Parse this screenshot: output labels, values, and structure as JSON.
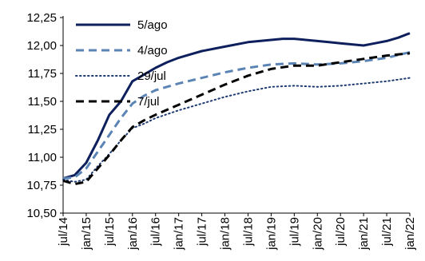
{
  "chart_data": {
    "type": "line",
    "title": "",
    "xlabel": "",
    "ylabel": "",
    "ylim": [
      10.5,
      12.25
    ],
    "yticks": [
      10.5,
      10.75,
      11.0,
      11.25,
      11.5,
      11.75,
      12.0,
      12.25
    ],
    "ytick_labels": [
      "10,50",
      "10,75",
      "11,00",
      "11,25",
      "11,50",
      "11,75",
      "12,00",
      "12,25"
    ],
    "xtick_labels": [
      "jul/14",
      "jan/15",
      "jul/15",
      "jan/16",
      "jul/16",
      "jan/17",
      "jul/17",
      "jan/18",
      "jul/18",
      "jan/19",
      "jul/19",
      "jan/20",
      "jul/20",
      "jan/21",
      "jul/21",
      "jan/22"
    ],
    "xtick_index": [
      0,
      6,
      12,
      18,
      24,
      30,
      36,
      42,
      48,
      54,
      60,
      66,
      72,
      78,
      84,
      90
    ],
    "xlim_index": [
      0,
      90
    ],
    "legend_position": "top-left",
    "grid": false,
    "series": [
      {
        "name": "5/ago",
        "color": "#0d1f5c",
        "dash": "solid",
        "points": [
          [
            0,
            10.81
          ],
          [
            3,
            10.84
          ],
          [
            6,
            10.95
          ],
          [
            9,
            11.15
          ],
          [
            12,
            11.38
          ],
          [
            15,
            11.5
          ],
          [
            18,
            11.68
          ],
          [
            21,
            11.74
          ],
          [
            24,
            11.8
          ],
          [
            27,
            11.85
          ],
          [
            30,
            11.89
          ],
          [
            33,
            11.92
          ],
          [
            36,
            11.95
          ],
          [
            42,
            11.99
          ],
          [
            48,
            12.03
          ],
          [
            54,
            12.05
          ],
          [
            57,
            12.06
          ],
          [
            60,
            12.06
          ],
          [
            63,
            12.05
          ],
          [
            66,
            12.04
          ],
          [
            69,
            12.03
          ],
          [
            72,
            12.02
          ],
          [
            75,
            12.01
          ],
          [
            78,
            12.0
          ],
          [
            81,
            12.02
          ],
          [
            84,
            12.04
          ],
          [
            87,
            12.07
          ],
          [
            90,
            12.11
          ]
        ]
      },
      {
        "name": "4/ago",
        "color": "#5b84b5",
        "dash": "dashed",
        "points": [
          [
            0,
            10.81
          ],
          [
            3,
            10.82
          ],
          [
            6,
            10.9
          ],
          [
            9,
            11.05
          ],
          [
            12,
            11.2
          ],
          [
            15,
            11.35
          ],
          [
            18,
            11.48
          ],
          [
            21,
            11.55
          ],
          [
            24,
            11.6
          ],
          [
            30,
            11.66
          ],
          [
            36,
            11.71
          ],
          [
            42,
            11.76
          ],
          [
            48,
            11.8
          ],
          [
            54,
            11.83
          ],
          [
            60,
            11.84
          ],
          [
            66,
            11.83
          ],
          [
            72,
            11.84
          ],
          [
            78,
            11.86
          ],
          [
            84,
            11.89
          ],
          [
            90,
            11.94
          ]
        ]
      },
      {
        "name": "29/jul",
        "color": "#1f3b73",
        "dash": "dotted",
        "points": [
          [
            0,
            10.8
          ],
          [
            3,
            10.78
          ],
          [
            6,
            10.8
          ],
          [
            9,
            10.92
          ],
          [
            12,
            11.03
          ],
          [
            15,
            11.15
          ],
          [
            18,
            11.26
          ],
          [
            21,
            11.3
          ],
          [
            24,
            11.35
          ],
          [
            30,
            11.42
          ],
          [
            36,
            11.48
          ],
          [
            42,
            11.54
          ],
          [
            48,
            11.59
          ],
          [
            54,
            11.63
          ],
          [
            60,
            11.64
          ],
          [
            66,
            11.63
          ],
          [
            72,
            11.64
          ],
          [
            78,
            11.66
          ],
          [
            84,
            11.68
          ],
          [
            90,
            11.71
          ]
        ]
      },
      {
        "name": "7/jul",
        "color": "#000000",
        "dash": "dashed",
        "points": [
          [
            0,
            10.79
          ],
          [
            3,
            10.76
          ],
          [
            6,
            10.78
          ],
          [
            9,
            10.9
          ],
          [
            12,
            11.02
          ],
          [
            15,
            11.15
          ],
          [
            18,
            11.27
          ],
          [
            21,
            11.33
          ],
          [
            24,
            11.38
          ],
          [
            30,
            11.47
          ],
          [
            36,
            11.56
          ],
          [
            42,
            11.65
          ],
          [
            48,
            11.73
          ],
          [
            54,
            11.79
          ],
          [
            60,
            11.82
          ],
          [
            66,
            11.82
          ],
          [
            72,
            11.85
          ],
          [
            78,
            11.88
          ],
          [
            84,
            11.91
          ],
          [
            90,
            11.93
          ]
        ]
      }
    ]
  }
}
